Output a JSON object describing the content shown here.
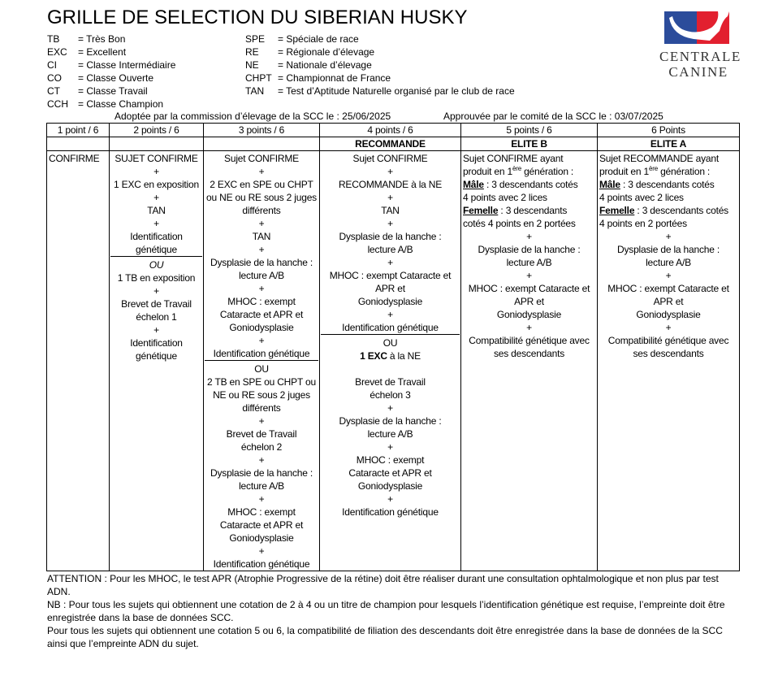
{
  "title": "GRILLE DE SELECTION DU SIBERIAN HUSKY",
  "legend_left": [
    {
      "abbr": "TB",
      "def": "= Très Bon"
    },
    {
      "abbr": "EXC",
      "def": "= Excellent"
    },
    {
      "abbr": "CI",
      "def": "= Classe Intermédiaire"
    },
    {
      "abbr": "CO",
      "def": "= Classe Ouverte"
    },
    {
      "abbr": "CT",
      "def": "= Classe Travail"
    },
    {
      "abbr": "CCH",
      "def": "= Classe Champion"
    }
  ],
  "legend_right": [
    {
      "abbr": "SPE",
      "def": "= Spéciale de race"
    },
    {
      "abbr": "RE",
      "def": "= Régionale d’élevage"
    },
    {
      "abbr": "NE",
      "def": "= Nationale d’élevage"
    },
    {
      "abbr": "CHPT",
      "def": "= Championnat de France"
    },
    {
      "abbr": "TAN",
      "def": "= Test d’Aptitude Naturelle organisé par le club de race"
    }
  ],
  "logo": {
    "line1": "CENTRALE",
    "line2": "CANINE",
    "colors": {
      "blue": "#2b4c9b",
      "red": "#e2202f"
    }
  },
  "adopted": "Adoptée par la commission d’élevage de la SCC le : 25/06/2025",
  "approved": "Approuvée par le comité de la SCC le : 03/07/2025",
  "table": {
    "headers": [
      "1 point / 6",
      "2 points / 6",
      "3 points / 6",
      "4 points / 6",
      "5 points / 6",
      "6 Points"
    ],
    "subheaders": [
      "",
      "",
      "",
      "RECOMMANDE",
      "ELITE B",
      "ELITE A"
    ],
    "cells": [
      {
        "lines": [
          {
            "text": "CONFIRME",
            "cls": "left"
          }
        ]
      },
      {
        "lines": [
          {
            "text": "SUJET CONFIRME"
          },
          {
            "text": "+"
          },
          {
            "text": "1 EXC en exposition"
          },
          {
            "text": "+"
          },
          {
            "text": "TAN"
          },
          {
            "text": "+"
          },
          {
            "text": "Identification"
          },
          {
            "text": "génétique",
            "cls": "sep"
          },
          {
            "text": "OU",
            "cls": "it"
          },
          {
            "text": "1 TB en exposition"
          },
          {
            "text": "+"
          },
          {
            "text": "Brevet de Travail"
          },
          {
            "text": "échelon 1"
          },
          {
            "text": "+"
          },
          {
            "text": "Identification"
          },
          {
            "text": "génétique"
          }
        ]
      },
      {
        "lines": [
          {
            "text": "Sujet CONFIRME"
          },
          {
            "text": "+"
          },
          {
            "text": "2 EXC en SPE ou CHPT"
          },
          {
            "text": "ou NE ou RE sous 2 juges"
          },
          {
            "text": "différents"
          },
          {
            "text": "+"
          },
          {
            "text": "TAN"
          },
          {
            "text": "+"
          },
          {
            "text": "Dysplasie de la hanche :"
          },
          {
            "text": "lecture A/B"
          },
          {
            "text": "+"
          },
          {
            "text": "MHOC : exempt"
          },
          {
            "text": "Cataracte et APR et"
          },
          {
            "text": "Goniodysplasie"
          },
          {
            "text": "+"
          },
          {
            "text": "Identification génétique",
            "cls": "sep"
          },
          {
            "text": "OU"
          },
          {
            "text": "2 TB en SPE ou CHPT ou"
          },
          {
            "text": "NE ou RE sous 2 juges"
          },
          {
            "text": "différents"
          },
          {
            "text": "+"
          },
          {
            "text": "Brevet de Travail"
          },
          {
            "text": "échelon 2"
          },
          {
            "text": "+"
          },
          {
            "text": "Dysplasie de la hanche :"
          },
          {
            "text": "lecture A/B"
          },
          {
            "text": "+"
          },
          {
            "text": "MHOC : exempt"
          },
          {
            "text": "Cataracte et APR et"
          },
          {
            "text": "Goniodysplasie"
          },
          {
            "text": "+"
          },
          {
            "text": "Identification génétique"
          }
        ]
      },
      {
        "lines": [
          {
            "text": "Sujet CONFIRME"
          },
          {
            "text": "+"
          },
          {
            "text": "RECOMMANDE à la NE"
          },
          {
            "text": "+"
          },
          {
            "text": "TAN"
          },
          {
            "text": "+"
          },
          {
            "text": "Dysplasie de la hanche :"
          },
          {
            "text": "lecture A/B"
          },
          {
            "text": "+"
          },
          {
            "text": "MHOC : exempt Cataracte et"
          },
          {
            "text": "APR et"
          },
          {
            "text": "Goniodysplasie"
          },
          {
            "text": "+"
          },
          {
            "text": "Identification génétique",
            "cls": "sep"
          },
          {
            "text": "OU"
          },
          {
            "text": "1 EXC à la NE",
            "bold": "1 EXC"
          },
          {
            "text": ""
          },
          {
            "text": "Brevet de Travail"
          },
          {
            "text": "échelon 3"
          },
          {
            "text": "+"
          },
          {
            "text": "Dysplasie de la hanche :"
          },
          {
            "text": "lecture A/B"
          },
          {
            "text": "+"
          },
          {
            "text": "MHOC : exempt"
          },
          {
            "text": "Cataracte et APR et"
          },
          {
            "text": "Goniodysplasie"
          },
          {
            "text": "+"
          },
          {
            "text": "Identification génétique"
          }
        ]
      },
      {
        "lines": [
          {
            "text": "Sujet CONFIRME ayant",
            "cls": "left"
          },
          {
            "text": "produit en 1",
            "sup": "ère",
            "after": " génération :",
            "cls": "left"
          },
          {
            "u": "Mâle",
            "text": " : 3 descendants cotés",
            "cls": "left"
          },
          {
            "text": " 4 points avec 2 lices",
            "cls": "left"
          },
          {
            "u": "Femelle",
            "text": " : 3 descendants",
            "cls": "left"
          },
          {
            "text": "cotés 4 points en 2 portées",
            "cls": "left"
          },
          {
            "text": "+"
          },
          {
            "text": "Dysplasie de la hanche :"
          },
          {
            "text": "lecture A/B"
          },
          {
            "text": "+"
          },
          {
            "text": "MHOC : exempt Cataracte et"
          },
          {
            "text": "APR et"
          },
          {
            "text": "Goniodysplasie"
          },
          {
            "text": "+"
          },
          {
            "text": "Compatibilité génétique avec"
          },
          {
            "text": "ses descendants"
          }
        ]
      },
      {
        "lines": [
          {
            "text": "Sujet RECOMMANDE ayant",
            "cls": "left"
          },
          {
            "text": "produit en 1",
            "sup": "ère",
            "after": " génération :",
            "cls": "left"
          },
          {
            "u": "Mâle",
            "text": " : 3 descendants cotés",
            "cls": "left"
          },
          {
            "text": " 4 points avec 2 lices",
            "cls": "left"
          },
          {
            "u": "Femelle",
            "text": " : 3 descendants cotés",
            "cls": "left"
          },
          {
            "text": " 4 points en 2 portées",
            "cls": "left"
          },
          {
            "text": "+"
          },
          {
            "text": "Dysplasie de la hanche :"
          },
          {
            "text": "lecture A/B"
          },
          {
            "text": "+"
          },
          {
            "text": "MHOC : exempt Cataracte et"
          },
          {
            "text": "APR et"
          },
          {
            "text": "Goniodysplasie"
          },
          {
            "text": "+"
          },
          {
            "text": "Compatibilité génétique avec"
          },
          {
            "text": "ses descendants"
          }
        ]
      }
    ]
  },
  "notes": [
    "ATTENTION : Pour les MHOC, le test APR (Atrophie Progressive de la rétine) doit être réaliser durant une consultation ophtalmologique et non plus par test ADN.",
    "NB : Pour tous les sujets qui obtiennent une cotation de 2 à 4 ou un titre de champion pour lesquels l’identification génétique est requise, l’empreinte doit être enregistrée dans la base de données SCC.",
    "Pour tous les sujets qui obtiennent une cotation 5 ou 6, la compatibilité de filiation des descendants doit être enregistrée dans la base de données de la SCC ainsi que l’empreinte ADN du sujet."
  ]
}
